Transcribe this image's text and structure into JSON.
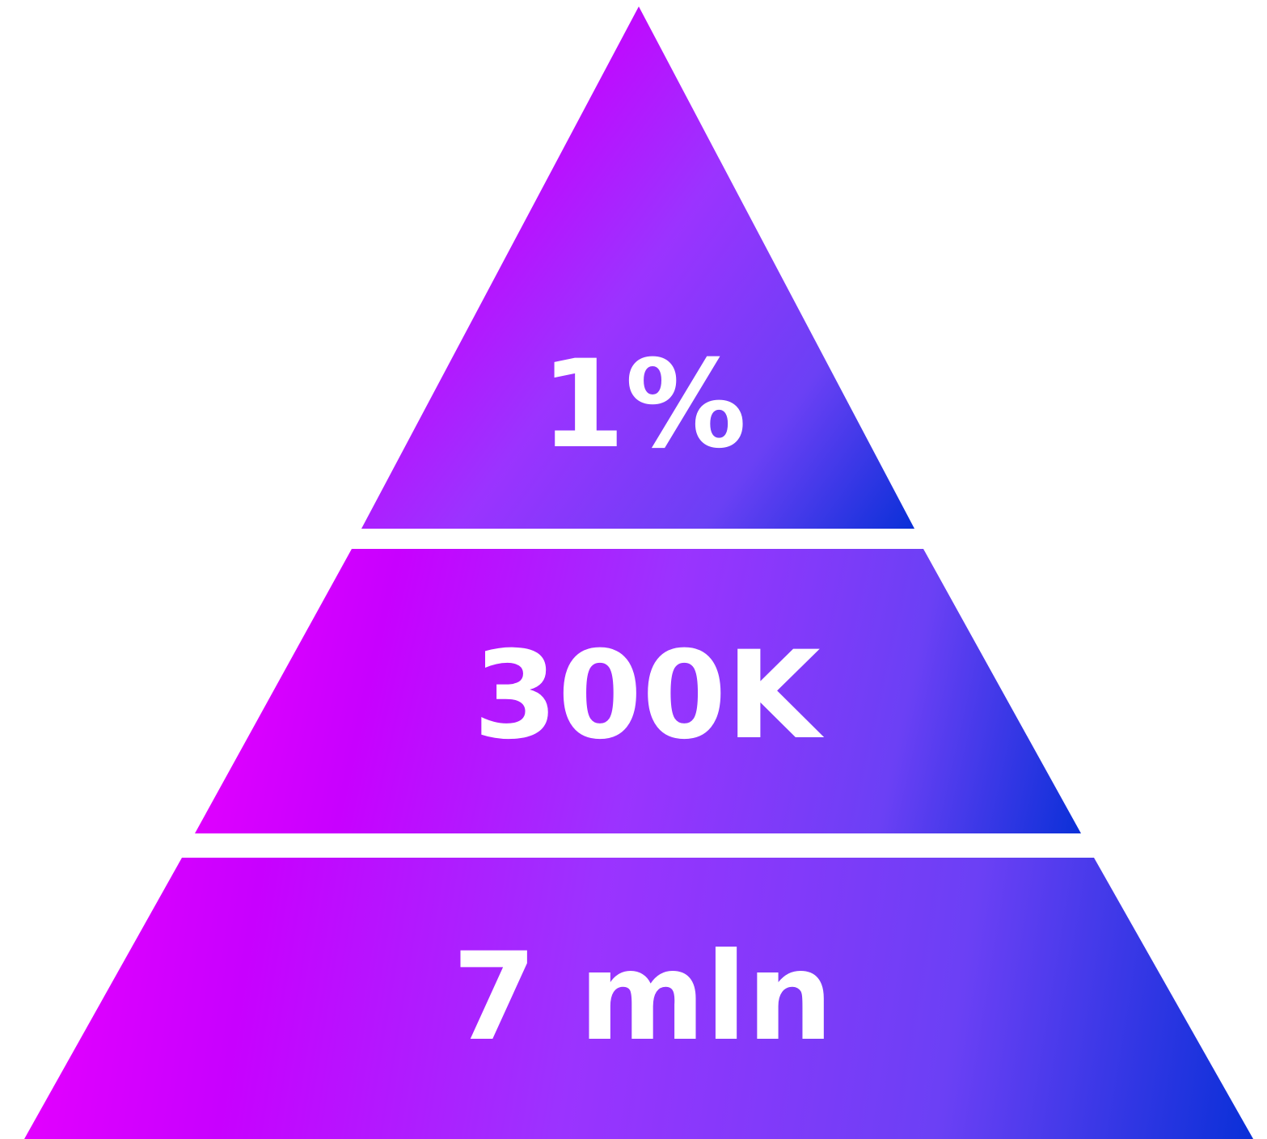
{
  "pyramid": {
    "tiers": [
      {
        "label": "1%"
      },
      {
        "label": "300K"
      },
      {
        "label": "7 mln"
      }
    ]
  },
  "colors": {
    "gradient_magenta": "#e600ff",
    "gradient_purple": "#c800ff",
    "gradient_violet": "#9b33ff",
    "gradient_indigo": "#6b40f5",
    "gradient_blue": "#0a30d8",
    "text": "#ffffff",
    "background": "#ffffff"
  }
}
